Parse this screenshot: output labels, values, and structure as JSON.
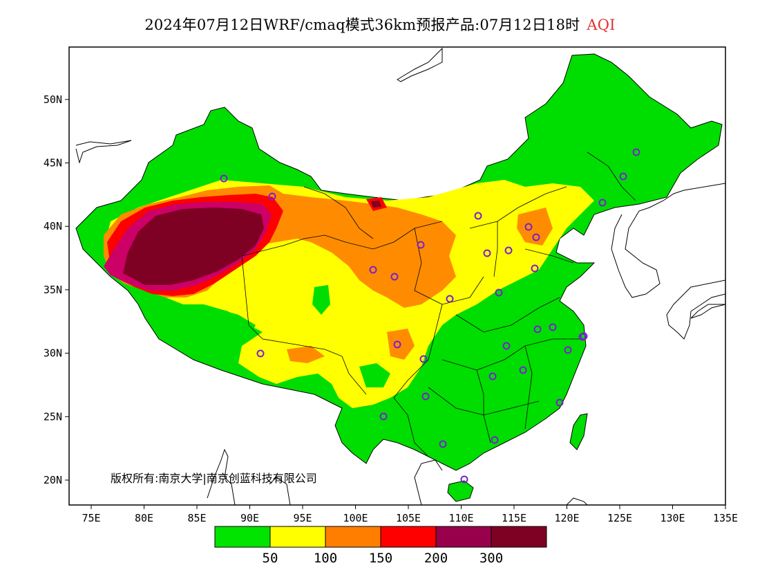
{
  "title": {
    "main": "2024年07月12日WRF/cmaq模式36km预报产品:07月12日18时",
    "variable": "AQI"
  },
  "axes": {
    "lon_ticks": [
      "75E",
      "80E",
      "85E",
      "90E",
      "95E",
      "100E",
      "105E",
      "110E",
      "115E",
      "120E",
      "125E",
      "130E",
      "135E"
    ],
    "lat_ticks": [
      "20N",
      "25N",
      "30N",
      "35N",
      "40N",
      "45N",
      "50N"
    ]
  },
  "copyright": "版权所有:南京大学|南京创蓝科技有限公司",
  "colorbar": {
    "colors": [
      "#00e400",
      "#ffff00",
      "#ff7e00",
      "#ff0000",
      "#99004c",
      "#7e0023"
    ],
    "labels": [
      "50",
      "100",
      "150",
      "200",
      "300"
    ]
  },
  "map_colors": {
    "green": "#00dd00",
    "yellow": "#ffff00",
    "orange": "#ff8c00",
    "red": "#ff0000",
    "magenta": "#cc0066",
    "maroon": "#7e0023",
    "station_marker": "#7a1fd1"
  },
  "station_count": 33
}
